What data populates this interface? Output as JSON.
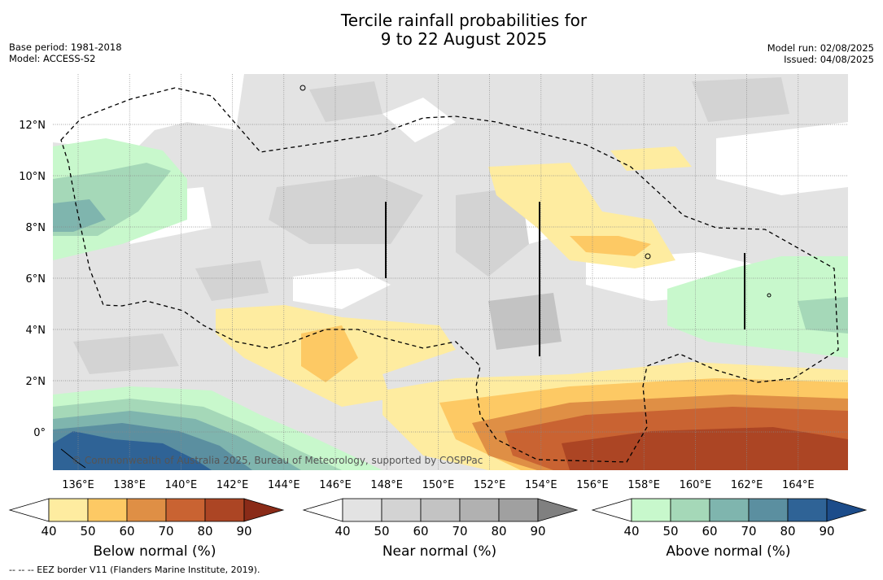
{
  "title": {
    "line1": "Tercile rainfall probabilities for",
    "line2": "9 to 22 August 2025"
  },
  "meta_left": {
    "base_period": "Base period: 1981-2018",
    "model": "Model: ACCESS-S2"
  },
  "meta_right": {
    "model_run": "Model run: 02/08/2025",
    "issued": "Issued: 04/08/2025"
  },
  "map": {
    "lat_labels": [
      "12°N",
      "10°N",
      "8°N",
      "6°N",
      "4°N",
      "2°N",
      "0°"
    ],
    "lat_values": [
      12,
      10,
      8,
      6,
      4,
      2,
      0
    ],
    "lon_labels": [
      "136°E",
      "138°E",
      "140°E",
      "142°E",
      "144°E",
      "146°E",
      "148°E",
      "150°E",
      "152°E",
      "154°E",
      "156°E",
      "158°E",
      "160°E",
      "162°E",
      "164°E"
    ],
    "lon_values": [
      136,
      138,
      140,
      142,
      144,
      146,
      148,
      150,
      152,
      154,
      156,
      158,
      160,
      162,
      164
    ],
    "copyright": "© Commonwealth of Australia 2025, Bureau of Meteorology, supported by COSPPac"
  },
  "colorbars": [
    {
      "label": "Below normal (%)",
      "ticks": [
        "40",
        "50",
        "60",
        "70",
        "80",
        "90"
      ],
      "colors": [
        "#ffffff",
        "#feeca0",
        "#fdc964",
        "#df8f45",
        "#c96332",
        "#ac4524",
        "#8a2b18"
      ]
    },
    {
      "label": "Near normal (%)",
      "ticks": [
        "40",
        "50",
        "60",
        "70",
        "80",
        "90"
      ],
      "colors": [
        "#ffffff",
        "#e3e3e3",
        "#d3d3d3",
        "#c3c3c3",
        "#b1b1b1",
        "#a0a0a0",
        "#808080"
      ]
    },
    {
      "label": "Above normal (%)",
      "ticks": [
        "40",
        "50",
        "60",
        "70",
        "80",
        "90"
      ],
      "colors": [
        "#ffffff",
        "#c8f8cc",
        "#a5d8b8",
        "#7fb5ae",
        "#5b8fa0",
        "#2f6396",
        "#1c4c8a"
      ]
    }
  ],
  "footer": "--  --  -- EEZ border V11 (Flanders Marine Institute, 2019)."
}
